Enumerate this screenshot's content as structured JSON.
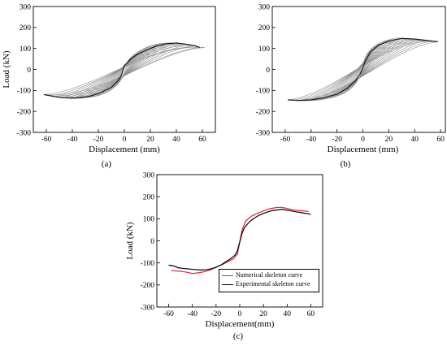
{
  "chart_data": [
    {
      "type": "line",
      "panel_label": "(a)",
      "xlabel": "Displacement (mm)",
      "ylabel": "Load (kN)",
      "xlim": [
        -70,
        70
      ],
      "ylim": [
        -300,
        300
      ],
      "xticks": [
        -60,
        -40,
        -20,
        0,
        20,
        40,
        60
      ],
      "yticks": [
        -300,
        -200,
        -100,
        0,
        100,
        200,
        300
      ],
      "grid": false,
      "series": [
        {
          "color": "#8c8c8c",
          "loops_peak_displacement": [
            6,
            10,
            14,
            18,
            22,
            26,
            30,
            34,
            38,
            42,
            46,
            50,
            54,
            58,
            62
          ],
          "skeleton": {
            "x": [
              -62,
              -55,
              -48,
              -40,
              -32,
              -25,
              -18,
              -10,
              -5,
              -2,
              0,
              2,
              5,
              10,
              18,
              25,
              32,
              40,
              48,
              55,
              58
            ],
            "y": [
              -120,
              -128,
              -135,
              -137,
              -133,
              -125,
              -110,
              -85,
              -55,
              -25,
              20,
              30,
              50,
              72,
              95,
              112,
              122,
              126,
              120,
              112,
              105
            ]
          }
        }
      ]
    },
    {
      "type": "line",
      "panel_label": "(b)",
      "xlabel": "Displacement (mm)",
      "ylabel": "",
      "xlim": [
        -70,
        70
      ],
      "ylim": [
        -300,
        300
      ],
      "xticks": [
        -60,
        -40,
        -20,
        0,
        20,
        40,
        60
      ],
      "yticks": [
        -300,
        -200,
        -100,
        0,
        100,
        200,
        300
      ],
      "grid": false,
      "series": [
        {
          "color": "#8c8c8c",
          "loops_peak_displacement": [
            6,
            10,
            14,
            18,
            22,
            26,
            30,
            34,
            38,
            42,
            46,
            50,
            54,
            58
          ],
          "skeleton": {
            "x": [
              -58,
              -50,
              -40,
              -30,
              -20,
              -12,
              -6,
              -2,
              0,
              2,
              6,
              12,
              20,
              30,
              40,
              50,
              58
            ],
            "y": [
              -145,
              -148,
              -145,
              -135,
              -118,
              -90,
              -55,
              -20,
              10,
              40,
              85,
              115,
              135,
              148,
              145,
              138,
              132
            ]
          }
        }
      ]
    },
    {
      "type": "line",
      "panel_label": "(c)",
      "xlabel": "Displacement(mm)",
      "ylabel": "Load (kN)",
      "xlim": [
        -70,
        70
      ],
      "ylim": [
        -300,
        300
      ],
      "xticks": [
        -60,
        -40,
        -20,
        0,
        20,
        40,
        60
      ],
      "yticks": [
        -300,
        -200,
        -100,
        0,
        100,
        200,
        300
      ],
      "grid": false,
      "legend_position": "bottom-right",
      "series": [
        {
          "name": "Numerical skeleton curve",
          "color": "#e8203a",
          "x": [
            -58,
            -50,
            -45,
            -40,
            -35,
            -30,
            -25,
            -20,
            -15,
            -10,
            -5,
            -2,
            0,
            2,
            5,
            10,
            15,
            20,
            25,
            30,
            35,
            40,
            45,
            50,
            55,
            58
          ],
          "y": [
            -135,
            -138,
            -142,
            -148,
            -145,
            -140,
            -132,
            -120,
            -108,
            -95,
            -80,
            -60,
            -5,
            50,
            90,
            112,
            125,
            135,
            145,
            150,
            152,
            147,
            140,
            137,
            135,
            133
          ]
        },
        {
          "name": "Experimental skeleton curve",
          "color": "#000000",
          "x": [
            -60,
            -55,
            -52,
            -48,
            -44,
            -40,
            -36,
            -32,
            -28,
            -24,
            -20,
            -16,
            -12,
            -8,
            -4,
            -2,
            0,
            2,
            4,
            8,
            12,
            16,
            20,
            24,
            28,
            32,
            36,
            40,
            44,
            48,
            52,
            56,
            60
          ],
          "y": [
            -110,
            -115,
            -122,
            -125,
            -127,
            -129,
            -131,
            -132,
            -131,
            -127,
            -120,
            -110,
            -96,
            -82,
            -65,
            -45,
            -5,
            35,
            60,
            85,
            102,
            115,
            124,
            132,
            138,
            140,
            143,
            139,
            135,
            131,
            128,
            124,
            120
          ]
        }
      ]
    }
  ]
}
